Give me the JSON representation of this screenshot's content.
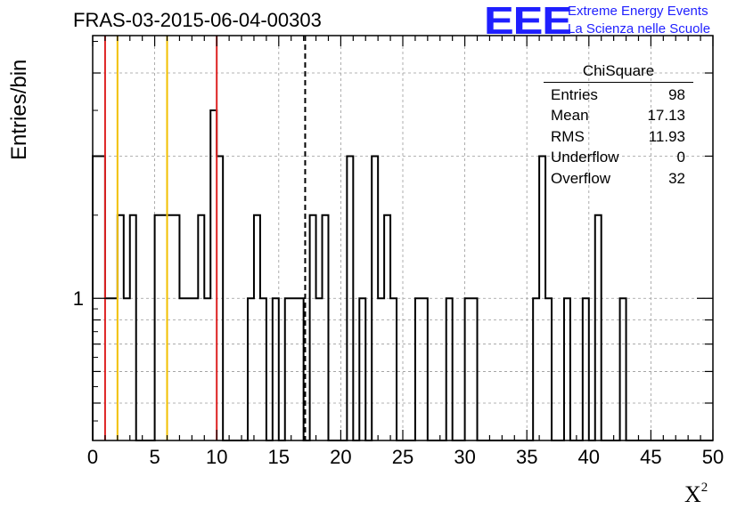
{
  "chart_data": {
    "type": "bar",
    "title": "FRAS-03-2015-06-04-00303",
    "xlabel": "X",
    "xlabel_superscript": "2",
    "ylabel": "Entries/bin",
    "xlim": [
      0,
      50
    ],
    "ylim_log": [
      0.5,
      3.6
    ],
    "bin_width": 0.5,
    "log_y": true,
    "grid": true,
    "x_ticks": [
      "0",
      "5",
      "10",
      "15",
      "20",
      "25",
      "30",
      "35",
      "40",
      "45",
      "50"
    ],
    "y_ticks": [
      "1"
    ],
    "bins": [
      {
        "x": 0.0,
        "y": 2
      },
      {
        "x": 0.5,
        "y": 2
      },
      {
        "x": 1.0,
        "y": 1
      },
      {
        "x": 1.5,
        "y": 1
      },
      {
        "x": 2.0,
        "y": 1.5
      },
      {
        "x": 2.5,
        "y": 1
      },
      {
        "x": 3.0,
        "y": 1.5
      },
      {
        "x": 5.0,
        "y": 1.5
      },
      {
        "x": 5.5,
        "y": 1.5
      },
      {
        "x": 6.0,
        "y": 1.5
      },
      {
        "x": 6.5,
        "y": 1.5
      },
      {
        "x": 7.0,
        "y": 1
      },
      {
        "x": 7.5,
        "y": 1
      },
      {
        "x": 8.0,
        "y": 1
      },
      {
        "x": 8.5,
        "y": 1.5
      },
      {
        "x": 9.0,
        "y": 1
      },
      {
        "x": 9.5,
        "y": 2.5
      },
      {
        "x": 10.0,
        "y": 2
      },
      {
        "x": 12.5,
        "y": 1
      },
      {
        "x": 13.0,
        "y": 1.5
      },
      {
        "x": 13.5,
        "y": 1
      },
      {
        "x": 14.5,
        "y": 1
      },
      {
        "x": 15.5,
        "y": 1
      },
      {
        "x": 16.0,
        "y": 1
      },
      {
        "x": 16.5,
        "y": 1
      },
      {
        "x": 17.5,
        "y": 1.5
      },
      {
        "x": 18.0,
        "y": 1
      },
      {
        "x": 18.5,
        "y": 1.5
      },
      {
        "x": 20.5,
        "y": 2
      },
      {
        "x": 21.5,
        "y": 1
      },
      {
        "x": 22.5,
        "y": 2
      },
      {
        "x": 23.0,
        "y": 1
      },
      {
        "x": 23.5,
        "y": 1.5
      },
      {
        "x": 24.0,
        "y": 1
      },
      {
        "x": 26.0,
        "y": 1
      },
      {
        "x": 26.5,
        "y": 1
      },
      {
        "x": 28.5,
        "y": 1
      },
      {
        "x": 30.0,
        "y": 1
      },
      {
        "x": 30.5,
        "y": 1
      },
      {
        "x": 35.5,
        "y": 1
      },
      {
        "x": 36.0,
        "y": 2
      },
      {
        "x": 36.5,
        "y": 1
      },
      {
        "x": 38.0,
        "y": 1
      },
      {
        "x": 39.5,
        "y": 1
      },
      {
        "x": 40.5,
        "y": 1.5
      },
      {
        "x": 42.5,
        "y": 1
      }
    ],
    "vertical_lines": [
      {
        "x": 1.0,
        "color": "#dd2222",
        "style": "solid"
      },
      {
        "x": 2.0,
        "color": "#f2c000",
        "style": "solid"
      },
      {
        "x": 6.0,
        "color": "#f2c000",
        "style": "solid"
      },
      {
        "x": 10.0,
        "color": "#dd2222",
        "style": "solid"
      },
      {
        "x": 17.13,
        "color": "#000000",
        "style": "dashed"
      }
    ]
  },
  "logo": {
    "text": "EEE",
    "line1": "Extreme Energy Events",
    "line2": "La Scienza nelle Scuole",
    "color": "#1f1fff"
  },
  "stats": {
    "title": "ChiSquare",
    "rows": [
      {
        "label": "Entries",
        "value": "98"
      },
      {
        "label": "Mean",
        "value": "17.13"
      },
      {
        "label": "RMS",
        "value": "11.93"
      },
      {
        "label": "Underflow",
        "value": "0"
      },
      {
        "label": "Overflow",
        "value": "32"
      }
    ]
  }
}
